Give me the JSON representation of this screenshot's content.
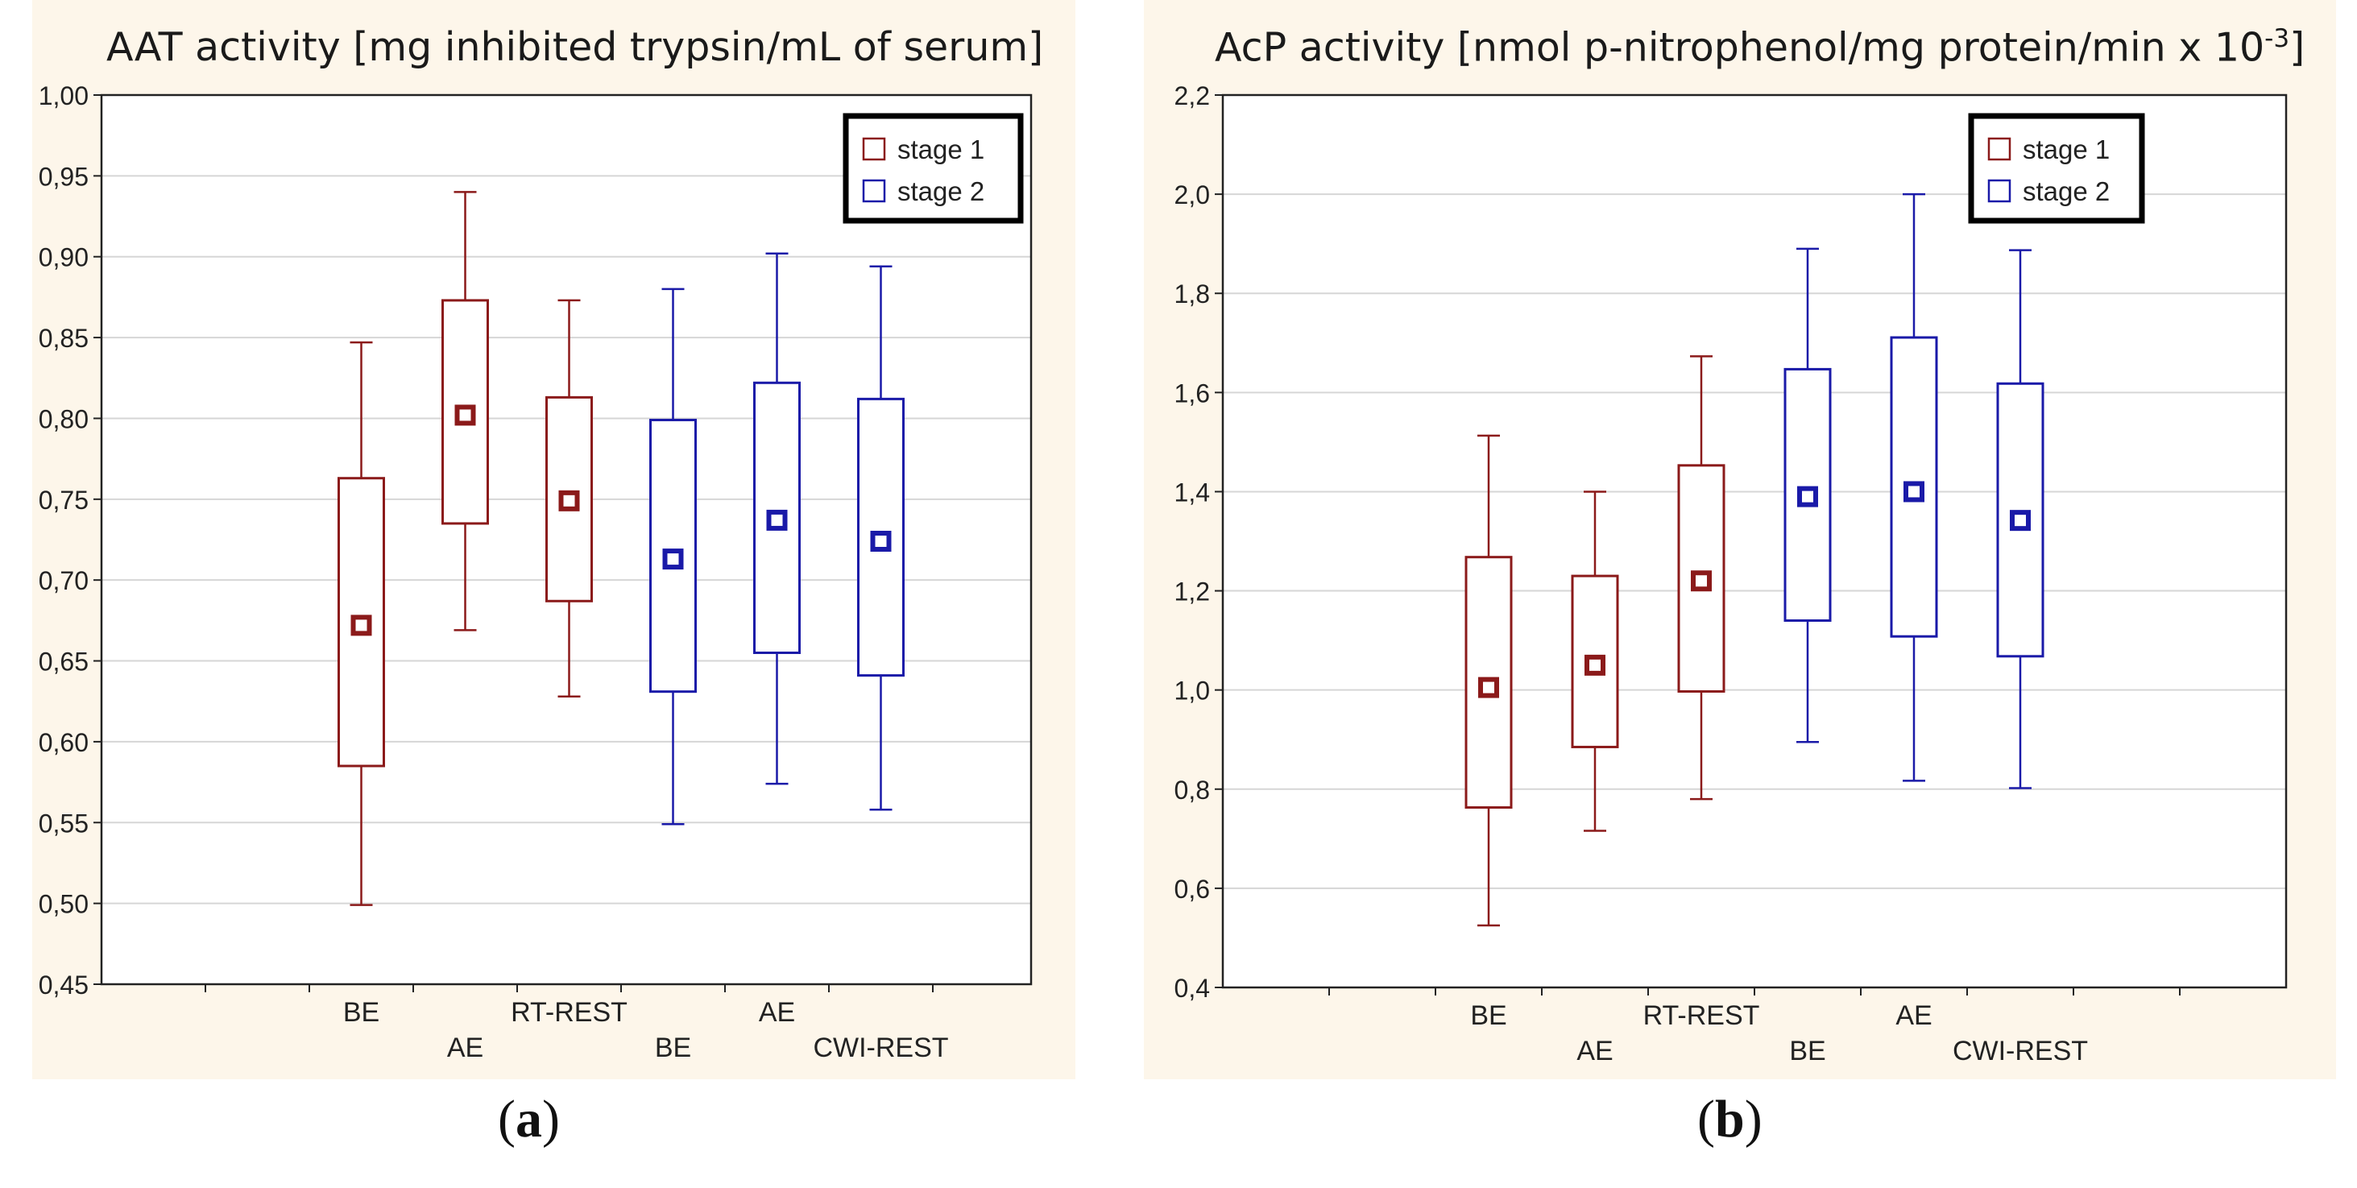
{
  "chart_data": [
    {
      "type": "box",
      "panel": "a",
      "title": "AAT activity [mg inhibited trypsin/mL of serum]",
      "ylim": [
        0.45,
        1.0
      ],
      "yticks": [
        "0,45",
        "0,50",
        "0,55",
        "0,60",
        "0,65",
        "0,70",
        "0,75",
        "0,80",
        "0,85",
        "0,90",
        "0,95",
        "1,00"
      ],
      "grid": true,
      "legend": {
        "placement": "top-right",
        "entries": [
          {
            "label": "stage 1",
            "color": "#8b1a1a"
          },
          {
            "label": "stage 2",
            "color": "#1a1aa8"
          }
        ]
      },
      "categories": [
        "BE",
        "AE",
        "RT-REST",
        "BE",
        "AE",
        "CWI-REST"
      ],
      "series_index": [
        0,
        0,
        0,
        1,
        1,
        1
      ],
      "boxes": [
        {
          "min": 0.499,
          "q1": 0.585,
          "center": 0.672,
          "q3": 0.763,
          "max": 0.847
        },
        {
          "min": 0.669,
          "q1": 0.735,
          "center": 0.802,
          "q3": 0.873,
          "max": 0.94
        },
        {
          "min": 0.628,
          "q1": 0.687,
          "center": 0.749,
          "q3": 0.813,
          "max": 0.873
        },
        {
          "min": 0.549,
          "q1": 0.631,
          "center": 0.713,
          "q3": 0.799,
          "max": 0.88
        },
        {
          "min": 0.574,
          "q1": 0.655,
          "center": 0.737,
          "q3": 0.822,
          "max": 0.902
        },
        {
          "min": 0.558,
          "q1": 0.641,
          "center": 0.724,
          "q3": 0.812,
          "max": 0.894
        }
      ]
    },
    {
      "type": "box",
      "panel": "b",
      "title": "AcP activity [nmol p-nitrophenol/mg protein/min x 10",
      "title_sup": "-3",
      "title_end": "]",
      "ylim": [
        0.4,
        2.2
      ],
      "yticks": [
        "0,4",
        "0,6",
        "0,8",
        "1,0",
        "1,2",
        "1,4",
        "1,6",
        "1,8",
        "2,0",
        "2,2"
      ],
      "grid": true,
      "legend": {
        "placement": "top-right",
        "entries": [
          {
            "label": "stage 1",
            "color": "#8b1a1a"
          },
          {
            "label": "stage 2",
            "color": "#1a1aa8"
          }
        ]
      },
      "categories": [
        "BE",
        "AE",
        "RT-REST",
        "BE",
        "AE",
        "CWI-REST"
      ],
      "series_index": [
        0,
        0,
        0,
        1,
        1,
        1
      ],
      "boxes": [
        {
          "min": 0.525,
          "q1": 0.763,
          "center": 1.005,
          "q3": 1.268,
          "max": 1.513
        },
        {
          "min": 0.716,
          "q1": 0.885,
          "center": 1.05,
          "q3": 1.23,
          "max": 1.4
        },
        {
          "min": 0.78,
          "q1": 0.997,
          "center": 1.22,
          "q3": 1.453,
          "max": 1.673
        },
        {
          "min": 0.895,
          "q1": 1.14,
          "center": 1.39,
          "q3": 1.647,
          "max": 1.89
        },
        {
          "min": 0.817,
          "q1": 1.108,
          "center": 1.4,
          "q3": 1.711,
          "max": 2.0
        },
        {
          "min": 0.802,
          "q1": 1.068,
          "center": 1.342,
          "q3": 1.618,
          "max": 1.887
        }
      ]
    }
  ],
  "labels": {
    "a": "a",
    "b": "b"
  }
}
